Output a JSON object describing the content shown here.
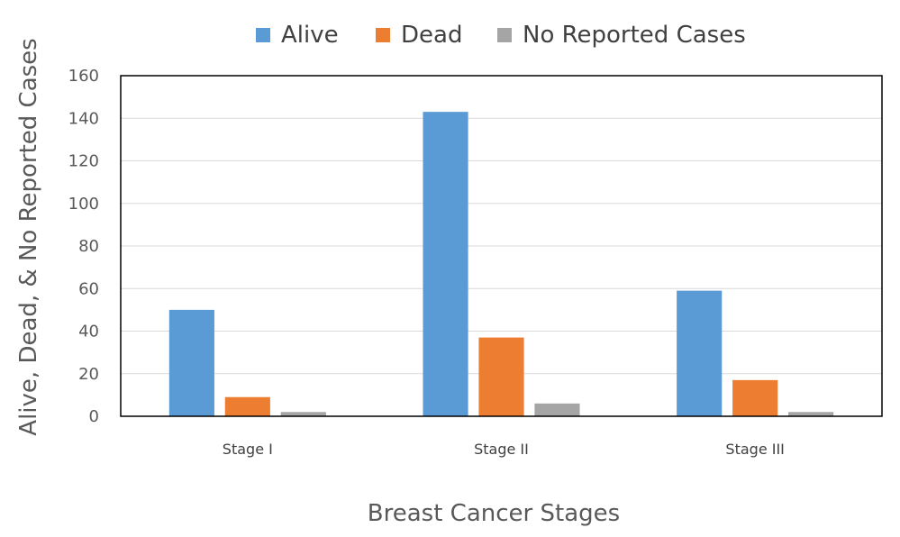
{
  "chart_data": {
    "type": "bar",
    "title": "",
    "xlabel": "Breast Cancer Stages",
    "ylabel": "Alive, Dead, & No Reported Cases",
    "categories": [
      "Stage I",
      "Stage II",
      "Stage III"
    ],
    "series": [
      {
        "name": "Alive",
        "color": "#5B9BD5",
        "values": [
          50,
          143,
          59
        ]
      },
      {
        "name": "Dead",
        "color": "#ED7D31",
        "values": [
          9,
          37,
          17
        ]
      },
      {
        "name": "No Reported Cases",
        "color": "#A5A5A5",
        "values": [
          2,
          6,
          2
        ]
      }
    ],
    "ylim": [
      0,
      160
    ],
    "yticks": [
      0,
      20,
      40,
      60,
      80,
      100,
      120,
      140,
      160
    ],
    "grid": true,
    "legend": "top"
  }
}
